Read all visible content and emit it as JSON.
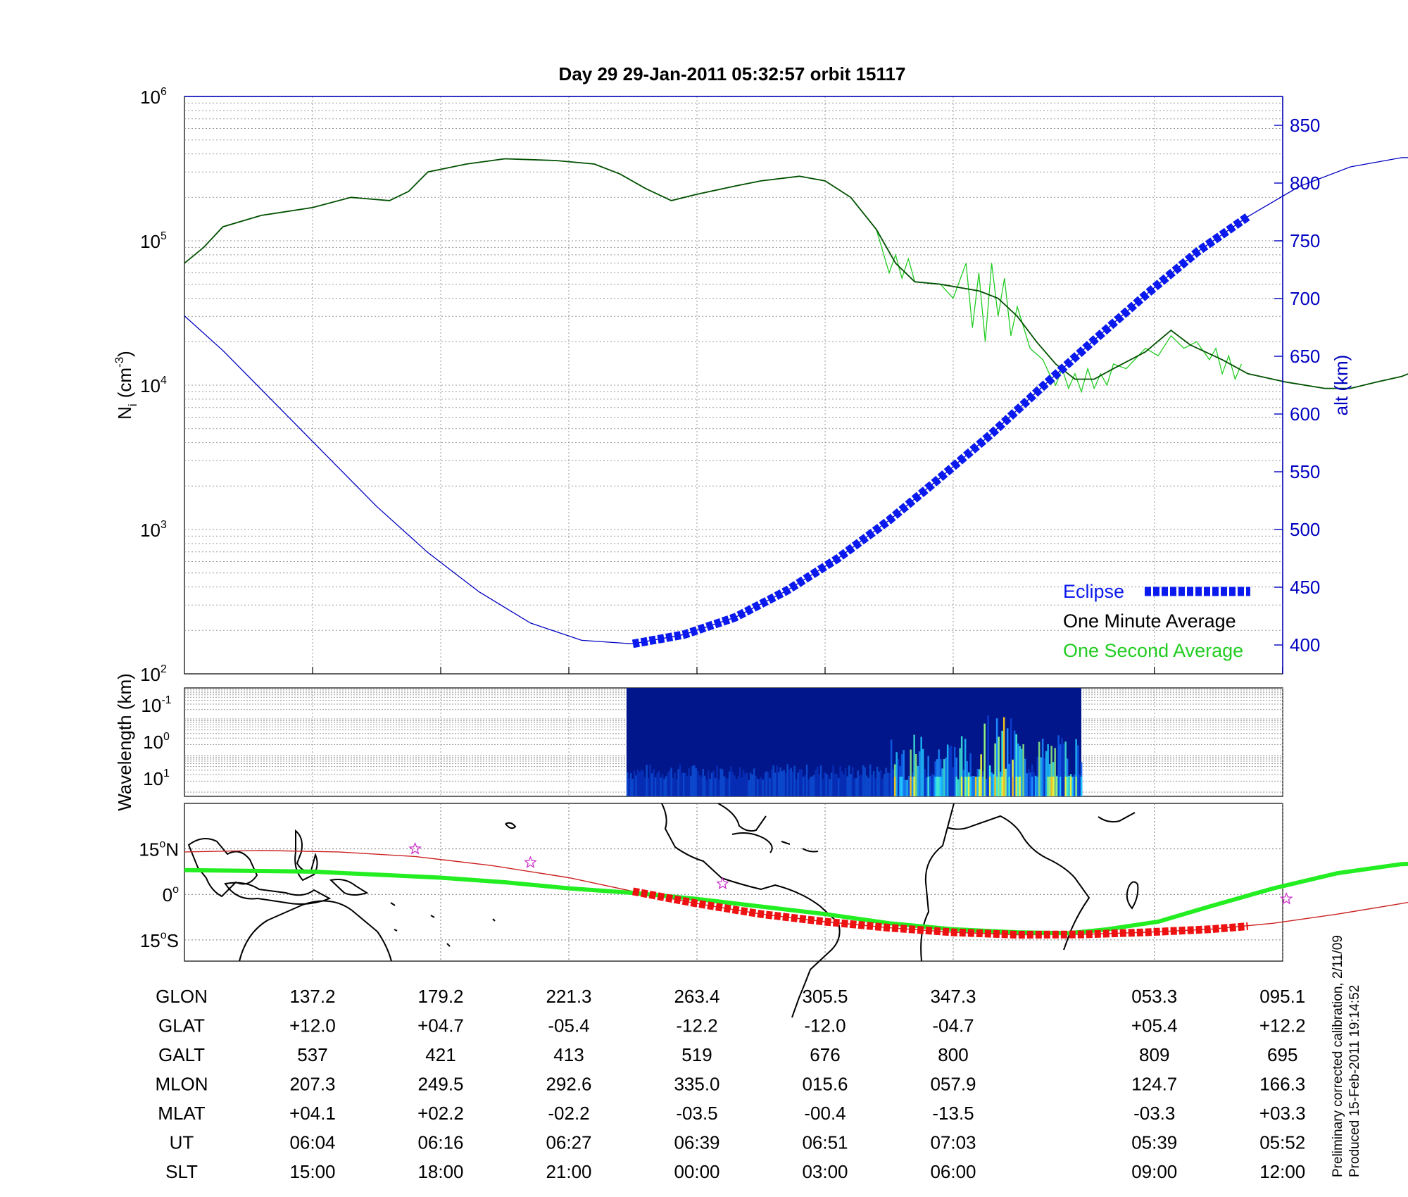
{
  "title": "Day 29  29-Jan-2011 05:32:57   orbit 15117",
  "colors": {
    "one_minute": "#005000",
    "one_second": "#22cc22",
    "altitude": "#0000c0",
    "eclipse": "#0a1aee",
    "track_green": "#22ee22",
    "track_eclipse_red": "#ee1111",
    "track_red_line": "#cc2222",
    "star": "#cc33cc",
    "spectro_bg": "#00168a"
  },
  "chart_data": [
    {
      "type": "line",
      "name": "density_altitude",
      "ylabel": "N",
      "ylabel_sub": "i",
      "ylabel_unit": "(cm",
      "ylabel_exp": "-3",
      "ylabel_tail": ")",
      "y2label": "alt (km)",
      "yscale": "log",
      "ylim": [
        100,
        1000000
      ],
      "y_ticks": [
        {
          "base": "10",
          "exp": "2"
        },
        {
          "base": "10",
          "exp": "3"
        },
        {
          "base": "10",
          "exp": "4"
        },
        {
          "base": "10",
          "exp": "5"
        },
        {
          "base": "10",
          "exp": "6"
        }
      ],
      "y2lim": [
        375,
        875
      ],
      "y2_ticks": [
        "400",
        "450",
        "500",
        "550",
        "600",
        "650",
        "700",
        "750",
        "800",
        "850"
      ],
      "grid": true,
      "legend_position": "bottom-right",
      "legend": {
        "eclipse": "Eclipse",
        "one_minute": "One Minute Average",
        "one_second": "One Second Average"
      },
      "x_label_positions": [
        1,
        2,
        3,
        4,
        5,
        6,
        7.57,
        8.57
      ],
      "series": [
        {
          "name": "One Minute Average",
          "axis": "left",
          "segments": [
            [
              [
                0,
                70000
              ],
              [
                0.15,
                90000
              ],
              [
                0.3,
                125000
              ],
              [
                0.6,
                150000
              ],
              [
                1.0,
                170000
              ],
              [
                1.3,
                200000
              ],
              [
                1.6,
                190000
              ],
              [
                1.75,
                220000
              ],
              [
                1.9,
                300000
              ],
              [
                2.2,
                340000
              ],
              [
                2.5,
                370000
              ],
              [
                2.9,
                360000
              ],
              [
                3.2,
                340000
              ],
              [
                3.4,
                290000
              ],
              [
                3.6,
                230000
              ],
              [
                3.8,
                190000
              ],
              [
                4.0,
                210000
              ],
              [
                4.3,
                240000
              ],
              [
                4.5,
                260000
              ],
              [
                4.8,
                280000
              ],
              [
                5.0,
                260000
              ],
              [
                5.2,
                200000
              ],
              [
                5.4,
                120000
              ],
              [
                5.55,
                70000
              ],
              [
                5.7,
                52000
              ],
              [
                5.9,
                50000
              ],
              [
                6.2,
                45000
              ],
              [
                6.35,
                40000
              ],
              [
                6.5,
                30000
              ],
              [
                6.65,
                20000
              ],
              [
                6.8,
                14000
              ],
              [
                6.95,
                11000
              ],
              [
                7.1,
                11000
              ],
              [
                7.25,
                13000
              ],
              [
                7.5,
                17000
              ],
              [
                7.7,
                24000
              ],
              [
                7.85,
                19000
              ],
              [
                8.1,
                15000
              ],
              [
                8.3,
                12000
              ],
              [
                8.6,
                10500
              ],
              [
                8.9,
                9500
              ],
              [
                9.1,
                9500
              ],
              [
                9.3,
                10500
              ],
              [
                9.5,
                11500
              ],
              [
                9.7,
                13500
              ],
              [
                9.9,
                16000
              ]
            ],
            [
              [
                10.6,
                19000
              ],
              [
                10.9,
                22000
              ],
              [
                11.3,
                25000
              ],
              [
                11.6,
                24000
              ],
              [
                11.9,
                26000
              ],
              [
                12.2,
                30000
              ],
              [
                12.5,
                36000
              ],
              [
                12.8,
                44000
              ],
              [
                13.1,
                53000
              ],
              [
                13.3,
                60000
              ],
              [
                13.6,
                70000
              ],
              [
                13.8,
                68000
              ]
            ]
          ]
        },
        {
          "name": "One Second Average",
          "axis": "left",
          "segments": [
            [
              [
                5.4,
                120000
              ],
              [
                5.5,
                60000
              ],
              [
                5.55,
                80000
              ],
              [
                5.6,
                55000
              ],
              [
                5.65,
                75000
              ],
              [
                5.7,
                52000
              ],
              [
                5.9,
                50000
              ],
              [
                6.0,
                40000
              ],
              [
                6.1,
                70000
              ],
              [
                6.15,
                25000
              ],
              [
                6.2,
                60000
              ],
              [
                6.25,
                20000
              ],
              [
                6.3,
                70000
              ],
              [
                6.35,
                30000
              ],
              [
                6.4,
                55000
              ],
              [
                6.45,
                22000
              ],
              [
                6.5,
                35000
              ],
              [
                6.6,
                18000
              ],
              [
                6.7,
                15000
              ],
              [
                6.75,
                12000
              ],
              [
                6.8,
                10000
              ],
              [
                6.85,
                13000
              ],
              [
                6.9,
                9500
              ],
              [
                6.95,
                12000
              ],
              [
                7.0,
                9000
              ],
              [
                7.05,
                13000
              ],
              [
                7.1,
                9500
              ],
              [
                7.15,
                12000
              ],
              [
                7.2,
                10000
              ],
              [
                7.25,
                14000
              ],
              [
                7.35,
                13000
              ],
              [
                7.5,
                18000
              ],
              [
                7.6,
                16000
              ],
              [
                7.7,
                22000
              ],
              [
                7.8,
                18000
              ],
              [
                7.9,
                20000
              ],
              [
                8.0,
                15000
              ],
              [
                8.05,
                18000
              ],
              [
                8.1,
                12000
              ],
              [
                8.15,
                16000
              ],
              [
                8.2,
                11000
              ],
              [
                8.25,
                14000
              ]
            ]
          ]
        },
        {
          "name": "alt (km)",
          "axis": "right",
          "segments": [
            [
              [
                0,
                685
              ],
              [
                0.3,
                655
              ],
              [
                0.7,
                610
              ],
              [
                1.1,
                565
              ],
              [
                1.5,
                520
              ],
              [
                1.9,
                480
              ],
              [
                2.3,
                446
              ],
              [
                2.7,
                419
              ],
              [
                3.1,
                404
              ],
              [
                3.5,
                401
              ],
              [
                3.9,
                409
              ],
              [
                4.3,
                424
              ],
              [
                4.7,
                447
              ],
              [
                5.1,
                475
              ],
              [
                5.5,
                508
              ],
              [
                5.9,
                545
              ],
              [
                6.3,
                583
              ],
              [
                6.7,
                624
              ],
              [
                7.1,
                664
              ],
              [
                7.5,
                703
              ],
              [
                7.9,
                740
              ],
              [
                8.3,
                771
              ],
              [
                8.7,
                797
              ],
              [
                9.1,
                814
              ],
              [
                9.5,
                822
              ],
              [
                9.9,
                822
              ]
            ],
            [
              [
                10.5,
                822
              ],
              [
                10.9,
                820
              ],
              [
                11.3,
                810
              ],
              [
                11.7,
                793
              ],
              [
                12.1,
                770
              ],
              [
                12.5,
                744
              ],
              [
                12.9,
                714
              ],
              [
                13.3,
                683
              ],
              [
                13.6,
                660
              ]
            ]
          ]
        }
      ],
      "eclipse_segment": {
        "x_start": 3.5,
        "x_end": 8.3
      }
    },
    {
      "type": "heatmap",
      "name": "wavelength_spectrogram",
      "ylabel": "Wavelength (km)",
      "yscale": "log",
      "y_ticks": [
        {
          "base": "10",
          "exp": "-1"
        },
        {
          "base": "10",
          "exp": "0"
        },
        {
          "base": "10",
          "exp": "1"
        }
      ],
      "x_extent": [
        3.45,
        7.0
      ],
      "grid": true
    },
    {
      "type": "line",
      "name": "ground_track_map",
      "y_ticks": [
        {
          "value": "15",
          "unit": "N"
        },
        {
          "value": "0",
          "unit": ""
        },
        {
          "value": "15",
          "unit": "S"
        }
      ],
      "ylim": [
        -22,
        30
      ],
      "geo_track": [
        [
          0,
          8
        ],
        [
          1.0,
          7.5
        ],
        [
          2.0,
          5.5
        ],
        [
          2.5,
          4
        ],
        [
          3.0,
          2
        ],
        [
          3.5,
          0.5
        ],
        [
          4.0,
          -1.5
        ],
        [
          4.5,
          -4
        ],
        [
          5.0,
          -6.5
        ],
        [
          5.5,
          -9.5
        ],
        [
          6.0,
          -11.5
        ],
        [
          6.5,
          -12.5
        ],
        [
          6.9,
          -12.8
        ],
        [
          7.2,
          -11.5
        ],
        [
          7.6,
          -9
        ],
        [
          8.0,
          -4
        ],
        [
          8.5,
          2
        ],
        [
          9.0,
          7
        ],
        [
          9.5,
          10
        ],
        [
          10.0,
          10.5
        ],
        [
          10.5,
          10
        ],
        [
          11.0,
          9
        ],
        [
          11.5,
          8
        ],
        [
          12.0,
          7
        ],
        [
          12.5,
          6.5
        ],
        [
          13.0,
          7
        ],
        [
          13.5,
          7.8
        ],
        [
          14.35,
          8
        ]
      ],
      "mag_track": [
        [
          0,
          14
        ],
        [
          0.6,
          14.5
        ],
        [
          1.2,
          14
        ],
        [
          1.8,
          12.5
        ],
        [
          2.4,
          9.5
        ],
        [
          3.0,
          5.5
        ],
        [
          3.5,
          1
        ],
        [
          4.0,
          -3
        ],
        [
          4.5,
          -6.5
        ],
        [
          5.0,
          -9
        ],
        [
          5.5,
          -11
        ],
        [
          6.0,
          -12.5
        ],
        [
          6.5,
          -13.3
        ],
        [
          7.0,
          -13.2
        ],
        [
          7.5,
          -12.5
        ],
        [
          8.0,
          -11.5
        ],
        [
          8.5,
          -9.5
        ],
        [
          9.0,
          -6.5
        ],
        [
          9.5,
          -3
        ],
        [
          9.9,
          0
        ]
      ],
      "mag_track_2": [
        [
          10.6,
          -1
        ],
        [
          11.0,
          0.5
        ],
        [
          11.5,
          2.5
        ],
        [
          12.0,
          4.5
        ],
        [
          12.5,
          6.5
        ],
        [
          13.0,
          8.5
        ],
        [
          13.5,
          10
        ],
        [
          14.35,
          12.5
        ]
      ],
      "eclipse_track": [
        [
          3.5,
          1
        ],
        [
          4.0,
          -3
        ],
        [
          4.5,
          -6.5
        ],
        [
          5.0,
          -9
        ],
        [
          5.5,
          -11
        ],
        [
          6.0,
          -12.5
        ],
        [
          6.5,
          -13.3
        ],
        [
          7.0,
          -13.2
        ],
        [
          7.5,
          -12.5
        ],
        [
          8.0,
          -11.5
        ],
        [
          8.3,
          -10.5
        ]
      ],
      "stars": [
        [
          1.8,
          15
        ],
        [
          2.7,
          10.5
        ],
        [
          4.2,
          3.5
        ],
        [
          8.6,
          -1.5
        ]
      ]
    }
  ],
  "table": {
    "rows": [
      {
        "label": "GLON",
        "values": [
          "137.2",
          "179.2",
          "221.3",
          "263.4",
          "305.5",
          "347.3",
          "053.3",
          "095.1"
        ]
      },
      {
        "label": "GLAT",
        "values": [
          "+12.0",
          "+04.7",
          "-05.4",
          "-12.2",
          "-12.0",
          "-04.7",
          "+05.4",
          "+12.2"
        ]
      },
      {
        "label": "GALT",
        "values": [
          "537",
          "421",
          "413",
          "519",
          "676",
          "800",
          "809",
          "695"
        ]
      },
      {
        "label": "MLON",
        "values": [
          "207.3",
          "249.5",
          "292.6",
          "335.0",
          "015.6",
          "057.9",
          "124.7",
          "166.3"
        ]
      },
      {
        "label": "MLAT",
        "values": [
          "+04.1",
          "+02.2",
          "-02.2",
          "-03.5",
          "-00.4",
          "-13.5",
          "-03.3",
          "+03.3"
        ]
      },
      {
        "label": "UT",
        "values": [
          "06:04",
          "06:16",
          "06:27",
          "06:39",
          "06:51",
          "07:03",
          "05:39",
          "05:52"
        ]
      },
      {
        "label": "SLT",
        "values": [
          "15:00",
          "18:00",
          "21:00",
          "00:00",
          "03:00",
          "06:00",
          "09:00",
          "12:00"
        ]
      }
    ]
  },
  "notes": {
    "line1": "Preliminary corrected calibration, 2/11/09",
    "line2": "Produced 15-Feb-2011 19:14:52"
  }
}
